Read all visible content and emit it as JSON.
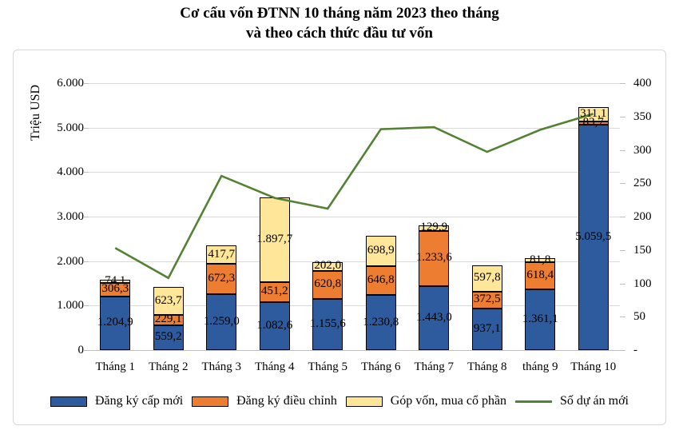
{
  "title": {
    "line1": "Cơ cấu vốn ĐTNN 10 tháng năm 2023 theo tháng",
    "line2": "và theo cách thức đầu tư vốn"
  },
  "chart_data": {
    "type": "bar",
    "subtype": "stacked-bar-with-line-overlay",
    "categories": [
      "Tháng 1",
      "Tháng 2",
      "Tháng 3",
      "Tháng 4",
      "Tháng 5",
      "Tháng 6",
      "Tháng 7",
      "Tháng 8",
      "tháng 9",
      "Tháng 10"
    ],
    "bar_series": [
      {
        "name": "Đăng ký cấp mới",
        "color": "#2e5b9e",
        "values": [
          1204.9,
          559.2,
          1259.0,
          1082.6,
          1155.6,
          1230.8,
          1443.0,
          937.1,
          1361.1,
          5059.5
        ],
        "labels": [
          "1.204,9",
          "559,2",
          "1.259,0",
          "1.082,6",
          "1.155,6",
          "1.230,8",
          "1.443,0",
          "937,1",
          "1.361,1",
          "5.059,5"
        ]
      },
      {
        "name": "Đăng ký điều chỉnh",
        "color": "#ed7d31",
        "values": [
          306.3,
          229.1,
          672.3,
          451.2,
          620.8,
          646.8,
          1233.6,
          372.5,
          618.4,
          83.7
        ],
        "labels": [
          "306,3",
          "229,1",
          "672,3",
          "451,2",
          "620,8",
          "646,8",
          "1.233,6",
          "372,5",
          "618,4",
          "83,7"
        ]
      },
      {
        "name": "Góp vốn, mua cổ phần",
        "color": "#ffe699",
        "values": [
          74.1,
          623.7,
          417.7,
          1897.7,
          202.0,
          698.9,
          129.9,
          597.8,
          81.8,
          311.1
        ],
        "labels": [
          "74,1",
          "623,7",
          "417,7",
          "1.897,7",
          "202,0",
          "698,9",
          "129,9",
          "597,8",
          "81,8",
          "311,1"
        ]
      }
    ],
    "line_series": {
      "name": "Số dự án mới",
      "color": "#548235",
      "values": [
        153,
        108,
        261,
        228,
        212,
        331,
        334,
        297,
        330,
        354
      ]
    },
    "left_axis": {
      "title": "Triệu USD",
      "min": 0,
      "max": 6000,
      "ticks": [
        {
          "value": 0,
          "label": "0"
        },
        {
          "value": 1000,
          "label": "1.000"
        },
        {
          "value": 2000,
          "label": "2.000"
        },
        {
          "value": 3000,
          "label": "3.000"
        },
        {
          "value": 4000,
          "label": "4.000"
        },
        {
          "value": 5000,
          "label": "5.000"
        },
        {
          "value": 6000,
          "label": "6.000"
        }
      ]
    },
    "right_axis": {
      "min": 0,
      "max": 400,
      "ticks": [
        {
          "value": 0,
          "label": "-"
        },
        {
          "value": 50,
          "label": "50"
        },
        {
          "value": 100,
          "label": "100"
        },
        {
          "value": 150,
          "label": "150"
        },
        {
          "value": 200,
          "label": "200"
        },
        {
          "value": 250,
          "label": "250"
        },
        {
          "value": 300,
          "label": "300"
        },
        {
          "value": 350,
          "label": "350"
        },
        {
          "value": 400,
          "label": "400"
        }
      ]
    },
    "grid": true,
    "legend_position": "bottom"
  }
}
